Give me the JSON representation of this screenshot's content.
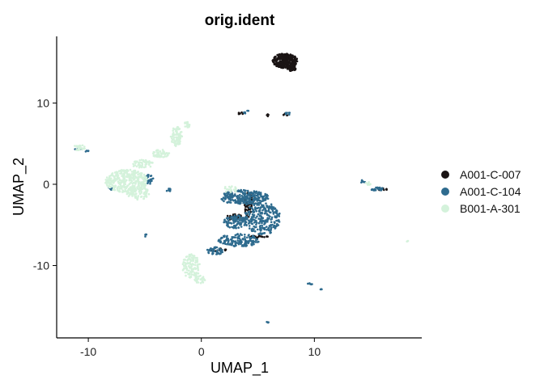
{
  "chart_data": {
    "type": "scatter",
    "title": "orig.ident",
    "xlabel": "UMAP_1",
    "ylabel": "UMAP_2",
    "xlim": [
      -12.8,
      19.5
    ],
    "ylim": [
      -18.9,
      18.2
    ],
    "xticks": [
      -10,
      0,
      10
    ],
    "xtick_labels": [
      "-10",
      "0",
      "10"
    ],
    "yticks": [
      -10,
      0,
      10
    ],
    "ytick_labels": [
      "-10",
      "0",
      "10"
    ],
    "grid": false,
    "legend_position": "right",
    "series": [
      {
        "name": "A001-C-007",
        "color": "#1a1414",
        "clusters": [
          {
            "cx": 7.4,
            "cy": 15.2,
            "rx": 1.1,
            "ry": 0.9,
            "n": 320
          },
          {
            "cx": 8.0,
            "cy": 14.3,
            "rx": 0.4,
            "ry": 0.4,
            "n": 40
          },
          {
            "cx": 4.2,
            "cy": -2.5,
            "rx": 0.4,
            "ry": 1.6,
            "n": 60
          },
          {
            "cx": 2.9,
            "cy": -4.0,
            "rx": 0.7,
            "ry": 0.4,
            "n": 25
          },
          {
            "cx": 5.0,
            "cy": -6.4,
            "rx": 0.9,
            "ry": 0.2,
            "n": 20
          },
          {
            "cx": 1.5,
            "cy": -8.1,
            "rx": 0.8,
            "ry": 0.2,
            "n": 18
          },
          {
            "cx": 16.0,
            "cy": -0.6,
            "rx": 0.5,
            "ry": 0.15,
            "n": 12
          },
          {
            "cx": 3.5,
            "cy": 8.7,
            "rx": 0.3,
            "ry": 0.15,
            "n": 6
          },
          {
            "cx": 7.5,
            "cy": 8.6,
            "rx": 0.3,
            "ry": 0.15,
            "n": 6
          },
          {
            "cx": 5.8,
            "cy": 8.5,
            "rx": 0.15,
            "ry": 0.3,
            "n": 5
          }
        ]
      },
      {
        "name": "A001-C-104",
        "color": "#2e6b8e",
        "clusters": [
          {
            "cx": 3.8,
            "cy": -1.6,
            "rx": 2.2,
            "ry": 0.9,
            "n": 260
          },
          {
            "cx": 5.4,
            "cy": -4.2,
            "rx": 1.6,
            "ry": 2.0,
            "n": 260
          },
          {
            "cx": 3.0,
            "cy": -4.6,
            "rx": 1.0,
            "ry": 0.8,
            "n": 90
          },
          {
            "cx": 3.3,
            "cy": -6.9,
            "rx": 1.8,
            "ry": 0.8,
            "n": 150
          },
          {
            "cx": 1.2,
            "cy": -8.2,
            "rx": 0.7,
            "ry": 0.5,
            "n": 50
          },
          {
            "cx": -4.6,
            "cy": 0.6,
            "rx": 0.4,
            "ry": 0.6,
            "n": 25
          },
          {
            "cx": -2.9,
            "cy": -0.7,
            "rx": 0.2,
            "ry": 0.2,
            "n": 8
          },
          {
            "cx": -8.0,
            "cy": -0.5,
            "rx": 0.2,
            "ry": 0.2,
            "n": 8
          },
          {
            "cx": 15.6,
            "cy": -0.6,
            "rx": 0.6,
            "ry": 0.2,
            "n": 25
          },
          {
            "cx": 14.3,
            "cy": 0.4,
            "rx": 0.3,
            "ry": 0.2,
            "n": 8
          },
          {
            "cx": 4.0,
            "cy": 8.9,
            "rx": 0.3,
            "ry": 0.2,
            "n": 8
          },
          {
            "cx": 7.7,
            "cy": 8.7,
            "rx": 0.3,
            "ry": 0.15,
            "n": 8
          },
          {
            "cx": 9.6,
            "cy": -12.3,
            "rx": 0.3,
            "ry": 0.2,
            "n": 6
          },
          {
            "cx": 10.6,
            "cy": -12.9,
            "rx": 0.1,
            "ry": 0.1,
            "n": 3
          },
          {
            "cx": 5.9,
            "cy": -17.0,
            "rx": 0.15,
            "ry": 0.2,
            "n": 5
          },
          {
            "cx": -4.9,
            "cy": -6.3,
            "rx": 0.1,
            "ry": 0.2,
            "n": 4
          },
          {
            "cx": -10.9,
            "cy": 4.3,
            "rx": 0.3,
            "ry": 0.2,
            "n": 6
          },
          {
            "cx": -10.1,
            "cy": 4.1,
            "rx": 0.15,
            "ry": 0.15,
            "n": 4
          }
        ]
      },
      {
        "name": "B001-A-301",
        "color": "#d4f2db",
        "clusters": [
          {
            "cx": -6.6,
            "cy": 0.4,
            "rx": 1.9,
            "ry": 1.4,
            "n": 360
          },
          {
            "cx": -5.6,
            "cy": -1.1,
            "rx": 1.0,
            "ry": 0.8,
            "n": 80
          },
          {
            "cx": -5.2,
            "cy": 2.5,
            "rx": 1.0,
            "ry": 0.5,
            "n": 60
          },
          {
            "cx": -3.6,
            "cy": 3.8,
            "rx": 0.8,
            "ry": 0.5,
            "n": 60
          },
          {
            "cx": -2.2,
            "cy": 5.9,
            "rx": 0.5,
            "ry": 1.2,
            "n": 90
          },
          {
            "cx": -1.3,
            "cy": 7.3,
            "rx": 0.3,
            "ry": 0.4,
            "n": 20
          },
          {
            "cx": -10.8,
            "cy": 4.5,
            "rx": 0.5,
            "ry": 0.4,
            "n": 22
          },
          {
            "cx": -0.9,
            "cy": -10.1,
            "rx": 0.8,
            "ry": 1.5,
            "n": 120
          },
          {
            "cx": -0.1,
            "cy": -11.7,
            "rx": 0.5,
            "ry": 0.5,
            "n": 30
          },
          {
            "cx": 2.6,
            "cy": -0.6,
            "rx": 0.7,
            "ry": 0.4,
            "n": 20
          },
          {
            "cx": 14.8,
            "cy": 0.1,
            "rx": 0.3,
            "ry": 0.2,
            "n": 10
          },
          {
            "cx": 18.2,
            "cy": -7.0,
            "rx": 0.1,
            "ry": 0.1,
            "n": 3
          }
        ]
      }
    ]
  }
}
